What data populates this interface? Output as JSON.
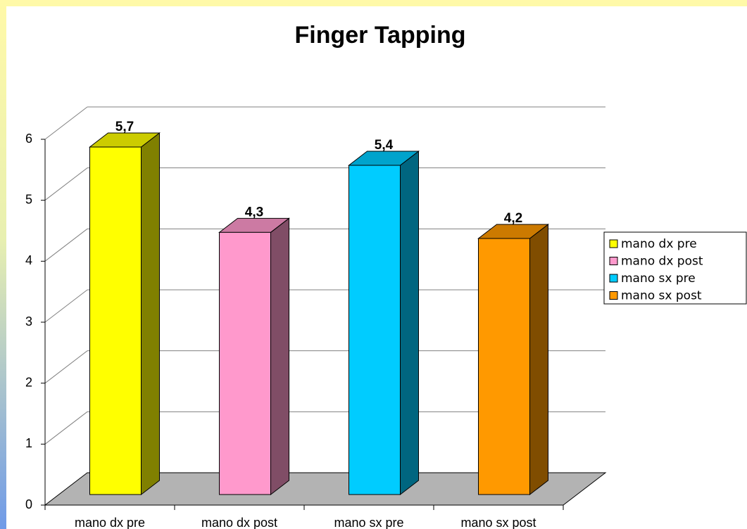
{
  "chart_data": {
    "type": "bar3d",
    "title": "Finger Tapping",
    "categories": [
      "mano dx pre",
      "mano dx post",
      "mano sx pre",
      "mano sx post"
    ],
    "values": [
      5.7,
      4.3,
      5.4,
      4.2
    ],
    "value_labels": [
      "5,7",
      "4,3",
      "5,4",
      "4,2"
    ],
    "colors": [
      "#ffff00",
      "#ff99cc",
      "#00ccff",
      "#ff9900"
    ],
    "ylim": [
      0,
      6
    ],
    "yticks": [
      0,
      1,
      2,
      3,
      4,
      5,
      6
    ],
    "grid": true,
    "legend": "right"
  }
}
